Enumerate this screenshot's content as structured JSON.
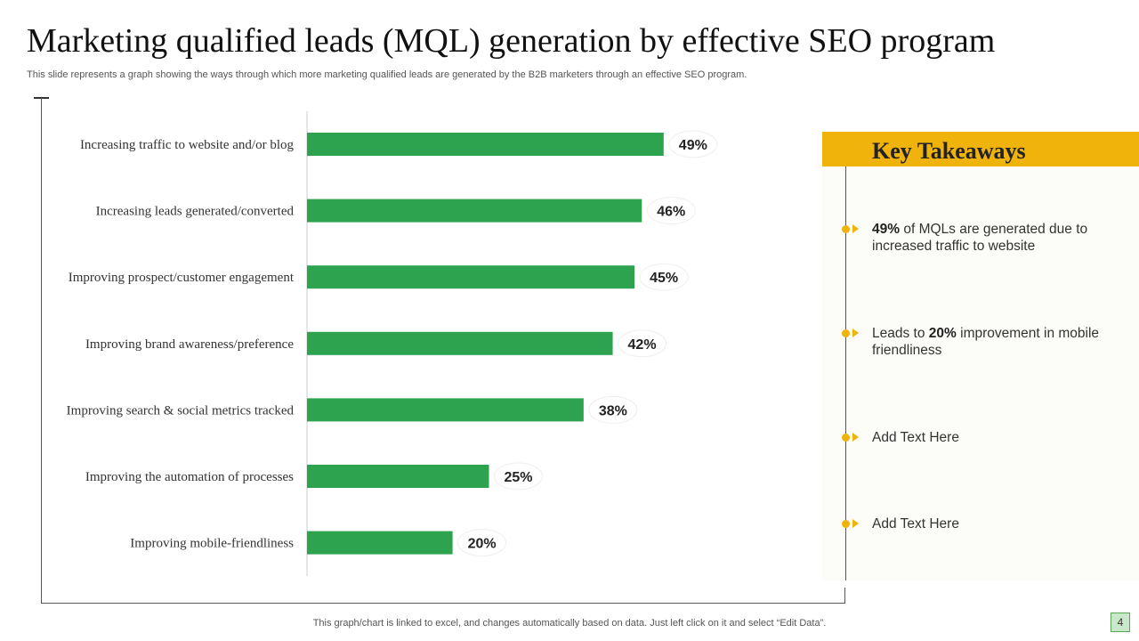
{
  "slide": {
    "title": "Marketing qualified leads (MQL) generation by effective SEO program",
    "subtitle": "This slide represents a graph showing the ways through which more marketing qualified leads are generated by the B2B marketers through an effective SEO program.",
    "footer": "This graph/chart is linked to excel,  and changes automatically based on data. Just left click on it and select “Edit Data”.",
    "page_number": "4"
  },
  "colors": {
    "bar": "#2ea34f",
    "accent": "#efb30b"
  },
  "chart_data": {
    "type": "bar",
    "orientation": "horizontal",
    "title": "",
    "xlabel": "",
    "ylabel": "",
    "categories": [
      "Increasing traffic to website and/or blog",
      "Increasing leads generated/converted",
      "Improving prospect/customer engagement",
      "Improving brand awareness/preference",
      "Improving search & social metrics tracked",
      "Improving the automation of processes",
      "Improving mobile-friendliness"
    ],
    "values": [
      49,
      46,
      45,
      42,
      38,
      25,
      20
    ],
    "value_labels": [
      "49%",
      "46%",
      "45%",
      "42%",
      "38%",
      "25%",
      "20%"
    ],
    "unit": "%",
    "xlim": [
      0,
      100
    ],
    "grid": false,
    "legend": "none"
  },
  "takeaways": {
    "title": "Key Takeaways",
    "items": [
      {
        "bold": "49%",
        "text": " of MQLs are generated due to increased traffic to website"
      },
      {
        "prefix": "Leads to ",
        "bold": "20%",
        "text": " improvement in mobile friendliness"
      },
      {
        "text": "Add Text Here"
      },
      {
        "text": "Add Text Here"
      }
    ]
  }
}
